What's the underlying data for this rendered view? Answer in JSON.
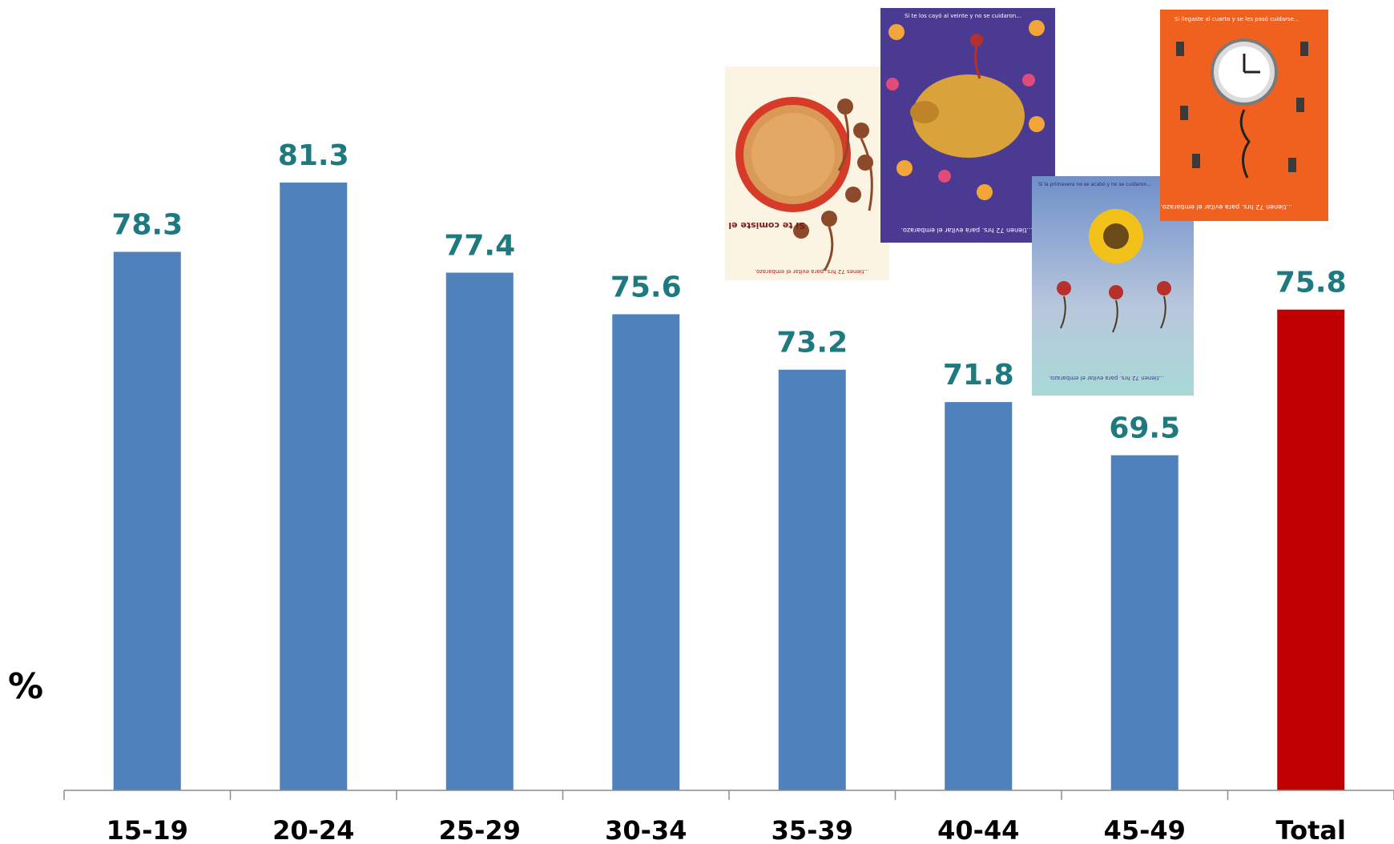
{
  "chart_data": {
    "type": "bar",
    "title": "",
    "xlabel": "",
    "ylabel": "%",
    "categories": [
      "15-19",
      "20-24",
      "25-29",
      "30-34",
      "35-39",
      "40-44",
      "45-49",
      "Total"
    ],
    "values": [
      78.3,
      81.3,
      77.4,
      75.6,
      73.2,
      71.8,
      69.5,
      75.8
    ],
    "value_labels": [
      "78.3",
      "81.3",
      "77.4",
      "75.6",
      "73.2",
      "71.8",
      "69.5",
      "75.8"
    ],
    "ylim": [
      55,
      84
    ],
    "grid": false,
    "legend": "none",
    "colors": {
      "bar": "#4f81bd",
      "highlight_bar": "#c00000",
      "value_label": "#1f7a7f",
      "axis": "#8c8c8c",
      "text": "#000000"
    },
    "highlight_category": "Total"
  },
  "illustrations": {
    "poster_cake": {
      "text_main": "Si te comiste el pastel completito ...",
      "text_footer": "...tienes 72 hrs. para evitar el embarazo."
    },
    "poster_piggy": {
      "text_main": "Si te los cayó al veinte y no se cuidaron...",
      "text_footer": "...tienen 72 hrs. para evitar el embarazo."
    },
    "poster_sunflower": {
      "text_main": "Si la primavera no se acabó y no se cuidaron...",
      "text_footer": "...tienen 72 hrs. para evitar el embarazo."
    },
    "poster_clock": {
      "text_main": "Si llegaste al cuarto y se les pasó cuidarse...",
      "text_footer": "...tienen 72 hrs. para evitar el embarazo."
    }
  }
}
